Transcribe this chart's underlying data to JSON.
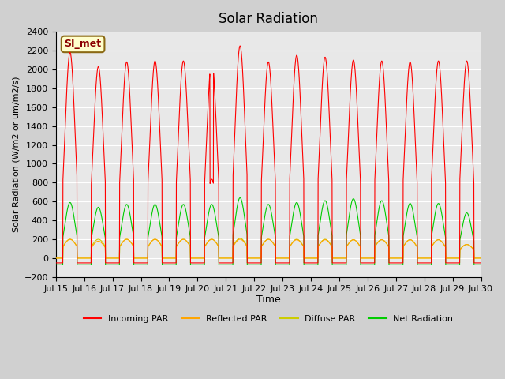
{
  "title": "Solar Radiation",
  "xlabel": "Time",
  "ylabel": "Solar Radiation (W/m2 or um/m2/s)",
  "ylim": [
    -200,
    2400
  ],
  "yticks": [
    -200,
    0,
    200,
    400,
    600,
    800,
    1000,
    1200,
    1400,
    1600,
    1800,
    2000,
    2200,
    2400
  ],
  "annotation": "SI_met",
  "colors": {
    "incoming": "#ff0000",
    "reflected": "#ffa500",
    "diffuse": "#cccc00",
    "net": "#00cc00"
  },
  "legend_labels": [
    "Incoming PAR",
    "Reflected PAR",
    "Diffuse PAR",
    "Net Radiation"
  ],
  "x_tick_labels": [
    "Jul 15",
    "Jul 16",
    "Jul 17",
    "Jul 18",
    "Jul 19",
    "Jul 20",
    "Jul 21",
    "Jul 22",
    "Jul 23",
    "Jul 24",
    "Jul 25",
    "Jul 26",
    "Jul 27",
    "Jul 28",
    "Jul 29",
    "Jul 30"
  ],
  "n_days": 15,
  "points_per_day": 144,
  "incoming_peaks": [
    2180,
    2030,
    2080,
    2090,
    2090,
    2090,
    2250,
    2080,
    2150,
    2130,
    2100,
    2090,
    2080,
    2090,
    2090
  ],
  "net_peaks": [
    590,
    540,
    570,
    570,
    570,
    570,
    640,
    570,
    590,
    610,
    630,
    610,
    580,
    580,
    480
  ],
  "diffuse_peaks": [
    200,
    200,
    200,
    200,
    200,
    200,
    210,
    200,
    200,
    200,
    195,
    195,
    195,
    195,
    145
  ],
  "reflected_peaks": [
    200,
    180,
    200,
    200,
    200,
    200,
    200,
    200,
    195,
    195,
    195,
    195,
    195,
    195,
    145
  ],
  "incoming_night_min": -50,
  "net_night_min": -70,
  "diffuse_night_min": 0,
  "reflected_night_min": 0
}
